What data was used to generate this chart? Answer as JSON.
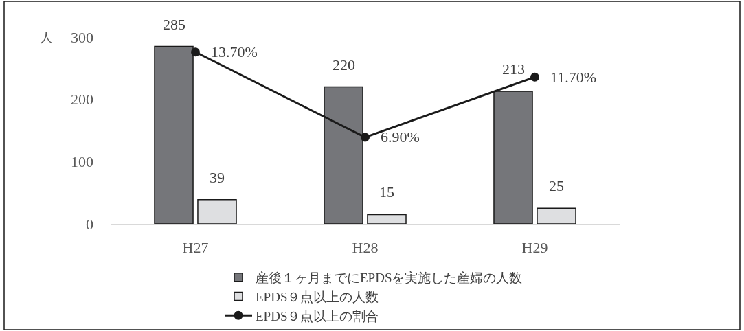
{
  "chart_data": {
    "type": "bar",
    "categories": [
      "H27",
      "H28",
      "H29"
    ],
    "ylabel": "人",
    "ylim": [
      0,
      300
    ],
    "yticks": [
      0,
      100,
      200,
      300
    ],
    "grid": false,
    "legend": "bottom",
    "marker": "circle",
    "series": [
      {
        "name": "産後１ヶ月までにEPDSを実施した産婦の人数",
        "color": "#75767a",
        "values": [
          285,
          220,
          213
        ],
        "value_labels": [
          "285",
          "220",
          "213"
        ]
      },
      {
        "name": "EPDS９点以上の人数",
        "color": "#dedfe1",
        "values": [
          39,
          15,
          25
        ],
        "value_labels": [
          "39",
          "15",
          "25"
        ]
      },
      {
        "name": "EPDS９点以上の割合",
        "type": "line",
        "axis": "y2",
        "color": "#1a1a1a",
        "values": [
          13.7,
          6.9,
          11.7
        ],
        "value_labels": [
          "13.70%",
          "6.90%",
          "11.70%"
        ]
      }
    ]
  }
}
